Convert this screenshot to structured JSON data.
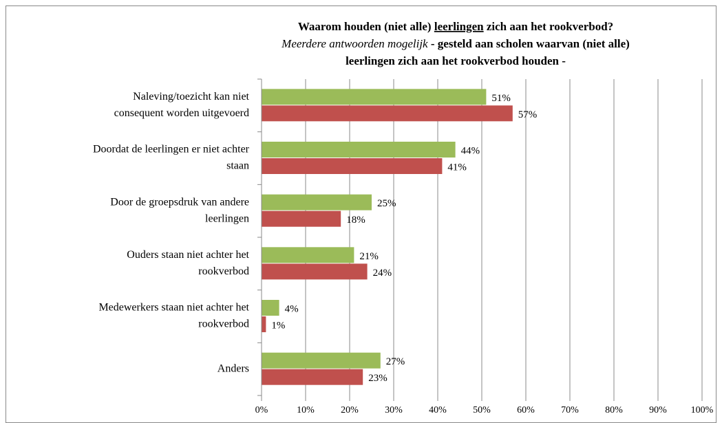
{
  "chart_data": {
    "type": "bar",
    "orientation": "horizontal",
    "title": [
      [
        "Waarom houden (niet alle) ",
        "leerlingen",
        " zich aan het rookverbod?"
      ],
      [
        "Meerdere antwoorden mogelijk",
        " - gesteld aan scholen waarvan (niet alle)"
      ],
      [
        "leerlingen zich aan het rookverbod houden -"
      ]
    ],
    "categories": [
      [
        "Naleving/toezicht kan niet",
        "consequent worden uitgevoerd"
      ],
      [
        "Doordat de leerlingen er niet achter",
        "staan"
      ],
      [
        "Door de groepsdruk van andere",
        "leerlingen"
      ],
      [
        "Ouders staan niet achter het",
        "rookverbod"
      ],
      [
        "Medewerkers staan niet achter het",
        "rookverbod"
      ],
      [
        "Anders"
      ]
    ],
    "series": [
      {
        "color": "#9bbb59",
        "values": [
          51,
          44,
          25,
          21,
          4,
          27
        ],
        "value_labels": [
          "51%",
          "44%",
          "25%",
          "21%",
          "4%",
          "27%"
        ]
      },
      {
        "color": "#c0504d",
        "values": [
          57,
          41,
          18,
          24,
          1,
          23
        ],
        "value_labels": [
          "57%",
          "41%",
          "18%",
          "24%",
          "1%",
          "23%"
        ]
      }
    ],
    "xlim": [
      0,
      100
    ],
    "xticks": [
      {
        "value": 0,
        "label": "0%"
      },
      {
        "value": 10,
        "label": "10%"
      },
      {
        "value": 20,
        "label": "20%"
      },
      {
        "value": 30,
        "label": "30%"
      },
      {
        "value": 40,
        "label": "40%"
      },
      {
        "value": 50,
        "label": "50%"
      },
      {
        "value": 60,
        "label": "60%"
      },
      {
        "value": 70,
        "label": "70%"
      },
      {
        "value": 80,
        "label": "80%"
      },
      {
        "value": 90,
        "label": "90%"
      },
      {
        "value": 100,
        "label": "100%"
      }
    ],
    "grid": true
  }
}
